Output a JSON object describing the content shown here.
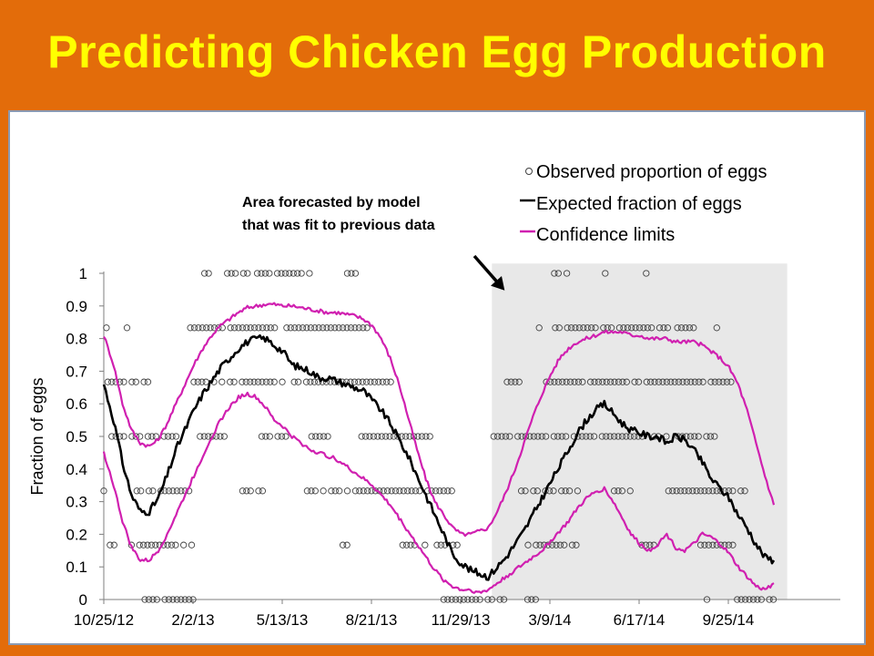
{
  "slide": {
    "title": "Predicting Chicken Egg Production",
    "background_color": "#e36c0a",
    "title_color": "#ffff00"
  },
  "chart_data": {
    "type": "line",
    "title": "",
    "xlabel": "",
    "ylabel": "Fraction of eggs",
    "ylim": [
      0,
      1
    ],
    "y_ticks": [
      "0",
      "0.1",
      "0.2",
      "0.3",
      "0.4",
      "0.5",
      "0.6",
      "0.7",
      "0.8",
      "0.9",
      "1"
    ],
    "x_range": [
      "2012-10-25",
      "2014-11-15"
    ],
    "x_ticks": [
      {
        "date": "2012-10-25",
        "label": "10/25/12"
      },
      {
        "date": "2013-02-02",
        "label": "2/2/13"
      },
      {
        "date": "2013-05-13",
        "label": "5/13/13"
      },
      {
        "date": "2013-08-21",
        "label": "8/21/13"
      },
      {
        "date": "2013-11-29",
        "label": "11/29/13"
      },
      {
        "date": "2014-03-09",
        "label": "3/9/14"
      },
      {
        "date": "2014-06-17",
        "label": "6/17/14"
      },
      {
        "date": "2014-09-25",
        "label": "9/25/14"
      }
    ],
    "grid": false,
    "legend_position": "top-right",
    "legend": [
      {
        "marker": "circle",
        "label": "Observed proportion of eggs",
        "color": "#404040"
      },
      {
        "marker": "line",
        "label": "Expected fraction of eggs",
        "color": "#000000"
      },
      {
        "marker": "line",
        "label": "Confidence limits",
        "color": "#d020b0"
      }
    ],
    "forecast_region": {
      "x_start": "2014-01-03",
      "x_end": "2014-11-30",
      "color": "#e8e8e8"
    },
    "annotation": {
      "lines": [
        "Area forecasted by model",
        "that was fit to previous data"
      ],
      "arrow_target": {
        "x": "2014-01-03",
        "y": 0.96
      }
    },
    "series": [
      {
        "name": "Expected fraction of eggs",
        "color": "#000000",
        "x": [
          "2012-10-25",
          "2012-11-05",
          "2012-11-15",
          "2012-11-25",
          "2012-12-05",
          "2012-12-15",
          "2012-12-25",
          "2013-01-04",
          "2013-01-14",
          "2013-01-24",
          "2013-02-03",
          "2013-02-13",
          "2013-02-23",
          "2013-03-05",
          "2013-03-15",
          "2013-03-25",
          "2013-04-04",
          "2013-04-14",
          "2013-04-24",
          "2013-05-04",
          "2013-05-14",
          "2013-05-24",
          "2013-06-03",
          "2013-06-13",
          "2013-06-23",
          "2013-07-03",
          "2013-07-13",
          "2013-07-23",
          "2013-08-02",
          "2013-08-12",
          "2013-08-22",
          "2013-09-01",
          "2013-09-11",
          "2013-09-21",
          "2013-10-01",
          "2013-10-11",
          "2013-10-21",
          "2013-10-31",
          "2013-11-10",
          "2013-11-20",
          "2013-11-30",
          "2013-12-10",
          "2013-12-20",
          "2013-12-30",
          "2014-01-09",
          "2014-01-19",
          "2014-01-29",
          "2014-02-08",
          "2014-02-18",
          "2014-02-28",
          "2014-03-10",
          "2014-03-20",
          "2014-03-30",
          "2014-04-09",
          "2014-04-19",
          "2014-04-29",
          "2014-05-09",
          "2014-05-19",
          "2014-05-29",
          "2014-06-08",
          "2014-06-18",
          "2014-06-28",
          "2014-07-08",
          "2014-07-18",
          "2014-07-28",
          "2014-08-07",
          "2014-08-17",
          "2014-08-27",
          "2014-09-06",
          "2014-09-16",
          "2014-09-26",
          "2014-10-06",
          "2014-10-16",
          "2014-10-26",
          "2014-11-05",
          "2014-11-15"
        ],
        "values": [
          0.66,
          0.55,
          0.42,
          0.32,
          0.27,
          0.27,
          0.31,
          0.38,
          0.46,
          0.52,
          0.58,
          0.63,
          0.67,
          0.71,
          0.74,
          0.77,
          0.79,
          0.8,
          0.8,
          0.78,
          0.76,
          0.72,
          0.71,
          0.7,
          0.68,
          0.68,
          0.67,
          0.66,
          0.65,
          0.64,
          0.61,
          0.58,
          0.54,
          0.49,
          0.44,
          0.38,
          0.32,
          0.26,
          0.2,
          0.14,
          0.11,
          0.09,
          0.08,
          0.07,
          0.1,
          0.13,
          0.17,
          0.21,
          0.26,
          0.31,
          0.36,
          0.41,
          0.46,
          0.51,
          0.55,
          0.58,
          0.6,
          0.57,
          0.54,
          0.52,
          0.51,
          0.5,
          0.5,
          0.48,
          0.5,
          0.49,
          0.46,
          0.42,
          0.37,
          0.34,
          0.31,
          0.26,
          0.22,
          0.17,
          0.13,
          0.12
        ]
      },
      {
        "name": "Confidence limits",
        "color": "#d020b0",
        "x": [
          "2012-10-25",
          "2012-11-05",
          "2012-11-15",
          "2012-11-25",
          "2012-12-05",
          "2012-12-15",
          "2012-12-25",
          "2013-01-04",
          "2013-01-14",
          "2013-01-24",
          "2013-02-03",
          "2013-02-13",
          "2013-02-23",
          "2013-03-05",
          "2013-03-15",
          "2013-03-25",
          "2013-04-04",
          "2013-04-14",
          "2013-04-24",
          "2013-05-04",
          "2013-05-14",
          "2013-05-24",
          "2013-06-03",
          "2013-06-13",
          "2013-06-23",
          "2013-07-03",
          "2013-07-13",
          "2013-07-23",
          "2013-08-02",
          "2013-08-12",
          "2013-08-22",
          "2013-09-01",
          "2013-09-11",
          "2013-09-21",
          "2013-10-01",
          "2013-10-11",
          "2013-10-21",
          "2013-10-31",
          "2013-11-10",
          "2013-11-20",
          "2013-11-30",
          "2013-12-10",
          "2013-12-20",
          "2013-12-30",
          "2014-01-09",
          "2014-01-19",
          "2014-01-29",
          "2014-02-08",
          "2014-02-18",
          "2014-02-28",
          "2014-03-10",
          "2014-03-20",
          "2014-03-30",
          "2014-04-09",
          "2014-04-19",
          "2014-04-29",
          "2014-05-09",
          "2014-05-19",
          "2014-05-29",
          "2014-06-08",
          "2014-06-18",
          "2014-06-28",
          "2014-07-08",
          "2014-07-18",
          "2014-07-28",
          "2014-08-07",
          "2014-08-17",
          "2014-08-27",
          "2014-09-06",
          "2014-09-16",
          "2014-09-26",
          "2014-10-06",
          "2014-10-16",
          "2014-10-26",
          "2014-11-05",
          "2014-11-15"
        ],
        "values": [
          0.81,
          0.72,
          0.6,
          0.52,
          0.48,
          0.47,
          0.49,
          0.54,
          0.6,
          0.66,
          0.72,
          0.77,
          0.81,
          0.84,
          0.86,
          0.88,
          0.895,
          0.9,
          0.905,
          0.905,
          0.9,
          0.9,
          0.895,
          0.89,
          0.885,
          0.88,
          0.88,
          0.875,
          0.87,
          0.86,
          0.84,
          0.8,
          0.74,
          0.66,
          0.56,
          0.46,
          0.37,
          0.3,
          0.26,
          0.22,
          0.2,
          0.2,
          0.21,
          0.22,
          0.27,
          0.33,
          0.4,
          0.48,
          0.56,
          0.63,
          0.69,
          0.74,
          0.77,
          0.79,
          0.8,
          0.81,
          0.82,
          0.82,
          0.82,
          0.81,
          0.81,
          0.8,
          0.8,
          0.8,
          0.79,
          0.79,
          0.79,
          0.78,
          0.76,
          0.74,
          0.71,
          0.66,
          0.58,
          0.48,
          0.38,
          0.29
        ]
      },
      {
        "name": "Confidence limits",
        "color": "#d020b0",
        "x": [
          "2012-10-25",
          "2012-11-05",
          "2012-11-15",
          "2012-11-25",
          "2012-12-05",
          "2012-12-15",
          "2012-12-25",
          "2013-01-04",
          "2013-01-14",
          "2013-01-24",
          "2013-02-03",
          "2013-02-13",
          "2013-02-23",
          "2013-03-05",
          "2013-03-15",
          "2013-03-25",
          "2013-04-04",
          "2013-04-14",
          "2013-04-24",
          "2013-05-04",
          "2013-05-14",
          "2013-05-24",
          "2013-06-03",
          "2013-06-13",
          "2013-06-23",
          "2013-07-03",
          "2013-07-13",
          "2013-07-23",
          "2013-08-02",
          "2013-08-12",
          "2013-08-22",
          "2013-09-01",
          "2013-09-11",
          "2013-09-21",
          "2013-10-01",
          "2013-10-11",
          "2013-10-21",
          "2013-10-31",
          "2013-11-10",
          "2013-11-20",
          "2013-11-30",
          "2013-12-10",
          "2013-12-20",
          "2013-12-30",
          "2014-01-09",
          "2014-01-19",
          "2014-01-29",
          "2014-02-08",
          "2014-02-18",
          "2014-02-28",
          "2014-03-10",
          "2014-03-20",
          "2014-03-30",
          "2014-04-09",
          "2014-04-19",
          "2014-04-29",
          "2014-05-09",
          "2014-05-19",
          "2014-05-29",
          "2014-06-08",
          "2014-06-18",
          "2014-06-28",
          "2014-07-08",
          "2014-07-18",
          "2014-07-28",
          "2014-08-07",
          "2014-08-17",
          "2014-08-27",
          "2014-09-06",
          "2014-09-16",
          "2014-09-26",
          "2014-10-06",
          "2014-10-16",
          "2014-10-26",
          "2014-11-05",
          "2014-11-15"
        ],
        "values": [
          0.45,
          0.35,
          0.24,
          0.16,
          0.12,
          0.12,
          0.15,
          0.2,
          0.26,
          0.32,
          0.38,
          0.44,
          0.5,
          0.55,
          0.59,
          0.62,
          0.63,
          0.62,
          0.59,
          0.55,
          0.53,
          0.5,
          0.48,
          0.46,
          0.45,
          0.44,
          0.43,
          0.41,
          0.39,
          0.37,
          0.35,
          0.32,
          0.29,
          0.25,
          0.21,
          0.17,
          0.13,
          0.09,
          0.06,
          0.04,
          0.03,
          0.03,
          0.02,
          0.03,
          0.05,
          0.07,
          0.09,
          0.11,
          0.13,
          0.15,
          0.18,
          0.21,
          0.24,
          0.28,
          0.31,
          0.33,
          0.34,
          0.3,
          0.25,
          0.2,
          0.17,
          0.15,
          0.17,
          0.2,
          0.16,
          0.15,
          0.17,
          0.2,
          0.19,
          0.17,
          0.14,
          0.1,
          0.07,
          0.04,
          0.03,
          0.05
        ]
      }
    ],
    "observed": {
      "name": "Observed proportion of eggs",
      "levels": [
        0,
        0.167,
        0.333,
        0.5,
        0.667,
        0.833,
        1
      ],
      "segments": [
        {
          "level": 1,
          "ranges": [
            [
              "2013-02-15",
              "2013-02-22"
            ],
            [
              "2013-03-08",
              "2013-04-05"
            ],
            [
              "2013-04-15",
              "2013-06-15"
            ],
            [
              "2013-07-25",
              "2013-08-05"
            ],
            [
              "2014-03-14",
              "2014-03-20"
            ],
            [
              "2014-03-28",
              "2014-03-31"
            ],
            [
              "2014-05-10",
              "2014-05-14"
            ],
            [
              "2014-06-25",
              "2014-06-29"
            ]
          ]
        },
        {
          "level": 0.833,
          "ranges": [
            [
              "2012-10-28",
              "2012-11-01"
            ],
            [
              "2012-11-20",
              "2012-11-24"
            ],
            [
              "2013-01-30",
              "2013-08-18"
            ],
            [
              "2014-02-25",
              "2014-02-28"
            ],
            [
              "2014-03-15",
              "2014-07-20"
            ],
            [
              "2014-07-30",
              "2014-08-25"
            ],
            [
              "2014-09-12",
              "2014-09-16"
            ]
          ]
        },
        {
          "level": 0.667,
          "ranges": [
            [
              "2012-10-25",
              "2012-12-15"
            ],
            [
              "2013-02-03",
              "2013-09-15"
            ],
            [
              "2014-01-20",
              "2014-02-10"
            ],
            [
              "2014-03-05",
              "2014-09-30"
            ]
          ]
        },
        {
          "level": 0.5,
          "ranges": [
            [
              "2012-10-25",
              "2013-01-15"
            ],
            [
              "2013-02-10",
              "2013-03-10"
            ],
            [
              "2013-04-20",
              "2013-05-20"
            ],
            [
              "2013-06-15",
              "2013-07-05"
            ],
            [
              "2013-08-10",
              "2013-10-28"
            ],
            [
              "2014-01-05",
              "2014-09-10"
            ]
          ]
        },
        {
          "level": 0.333,
          "ranges": [
            [
              "2012-10-25",
              "2012-10-29"
            ],
            [
              "2012-12-01",
              "2013-02-01"
            ],
            [
              "2013-03-25",
              "2013-04-25"
            ],
            [
              "2013-06-10",
              "2013-11-25"
            ],
            [
              "2014-02-05",
              "2014-04-10"
            ],
            [
              "2014-05-20",
              "2014-06-10"
            ],
            [
              "2014-07-20",
              "2014-10-15"
            ]
          ]
        },
        {
          "level": 0.167,
          "ranges": [
            [
              "2012-11-01",
              "2012-11-06"
            ],
            [
              "2012-11-25",
              "2013-02-02"
            ],
            [
              "2013-07-20",
              "2013-07-28"
            ],
            [
              "2013-09-25",
              "2013-10-10"
            ],
            [
              "2013-10-20",
              "2013-11-28"
            ],
            [
              "2014-02-08",
              "2014-04-10"
            ],
            [
              "2014-06-20",
              "2014-07-05"
            ],
            [
              "2014-08-25",
              "2014-10-02"
            ]
          ]
        },
        {
          "level": 0,
          "ranges": [
            [
              "2012-12-10",
              "2013-02-02"
            ],
            [
              "2013-11-10",
              "2014-01-20"
            ],
            [
              "2014-02-12",
              "2014-02-25"
            ],
            [
              "2014-09-01",
              "2014-09-05"
            ],
            [
              "2014-10-05",
              "2014-11-15"
            ]
          ]
        }
      ]
    }
  }
}
